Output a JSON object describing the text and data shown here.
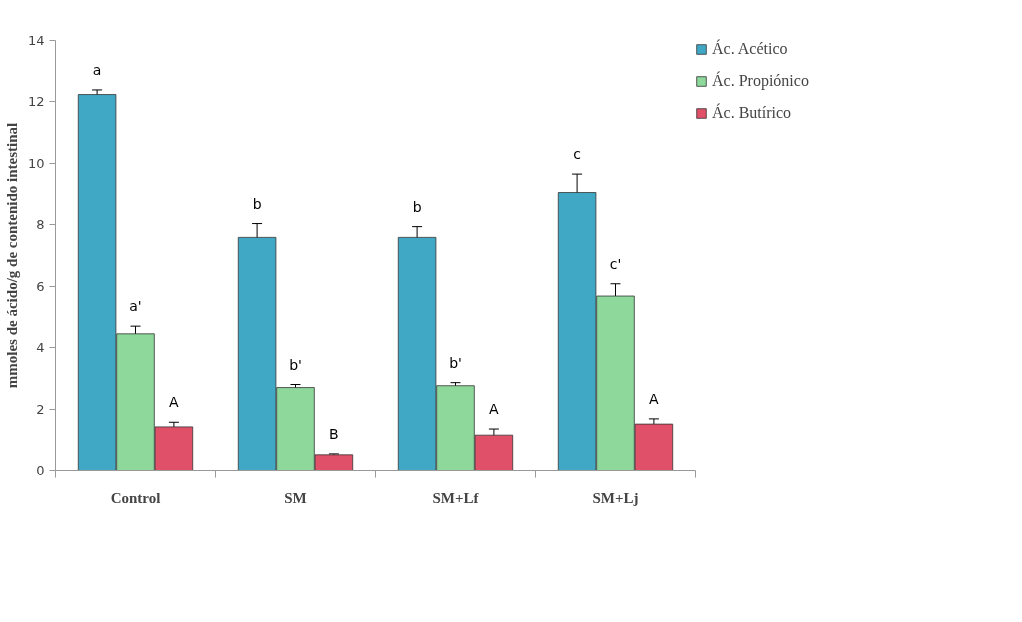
{
  "chart_data": {
    "type": "bar",
    "ylabel": "mmoles de ácido/g de contenido intestinal",
    "categories": [
      "Control",
      "SM",
      "SM+Lf",
      "SM+Lj"
    ],
    "series": [
      {
        "name": "Ác. Acético",
        "color": "#40a8c4",
        "values": [
          12.24,
          7.59,
          7.59,
          9.05
        ],
        "errors": [
          0.15,
          0.45,
          0.35,
          0.6
        ]
      },
      {
        "name": "Ác. Propiónico",
        "color": "#8dd89a",
        "values": [
          4.45,
          2.7,
          2.76,
          5.68
        ],
        "errors": [
          0.25,
          0.1,
          0.1,
          0.4
        ]
      },
      {
        "name": "Ác. Butírico",
        "color": "#e05068",
        "values": [
          1.42,
          0.51,
          1.15,
          1.51
        ],
        "errors": [
          0.15,
          0.03,
          0.2,
          0.17
        ]
      }
    ],
    "ylim": [
      0,
      14
    ],
    "yticks": [
      0,
      2,
      4,
      6,
      8,
      10,
      12,
      14
    ],
    "grid": false,
    "legend": "top right",
    "annotations": [
      "a",
      "a'",
      "A",
      "b",
      "b'",
      "B",
      "b",
      "b'",
      "A",
      "c",
      "c'",
      "A"
    ]
  }
}
